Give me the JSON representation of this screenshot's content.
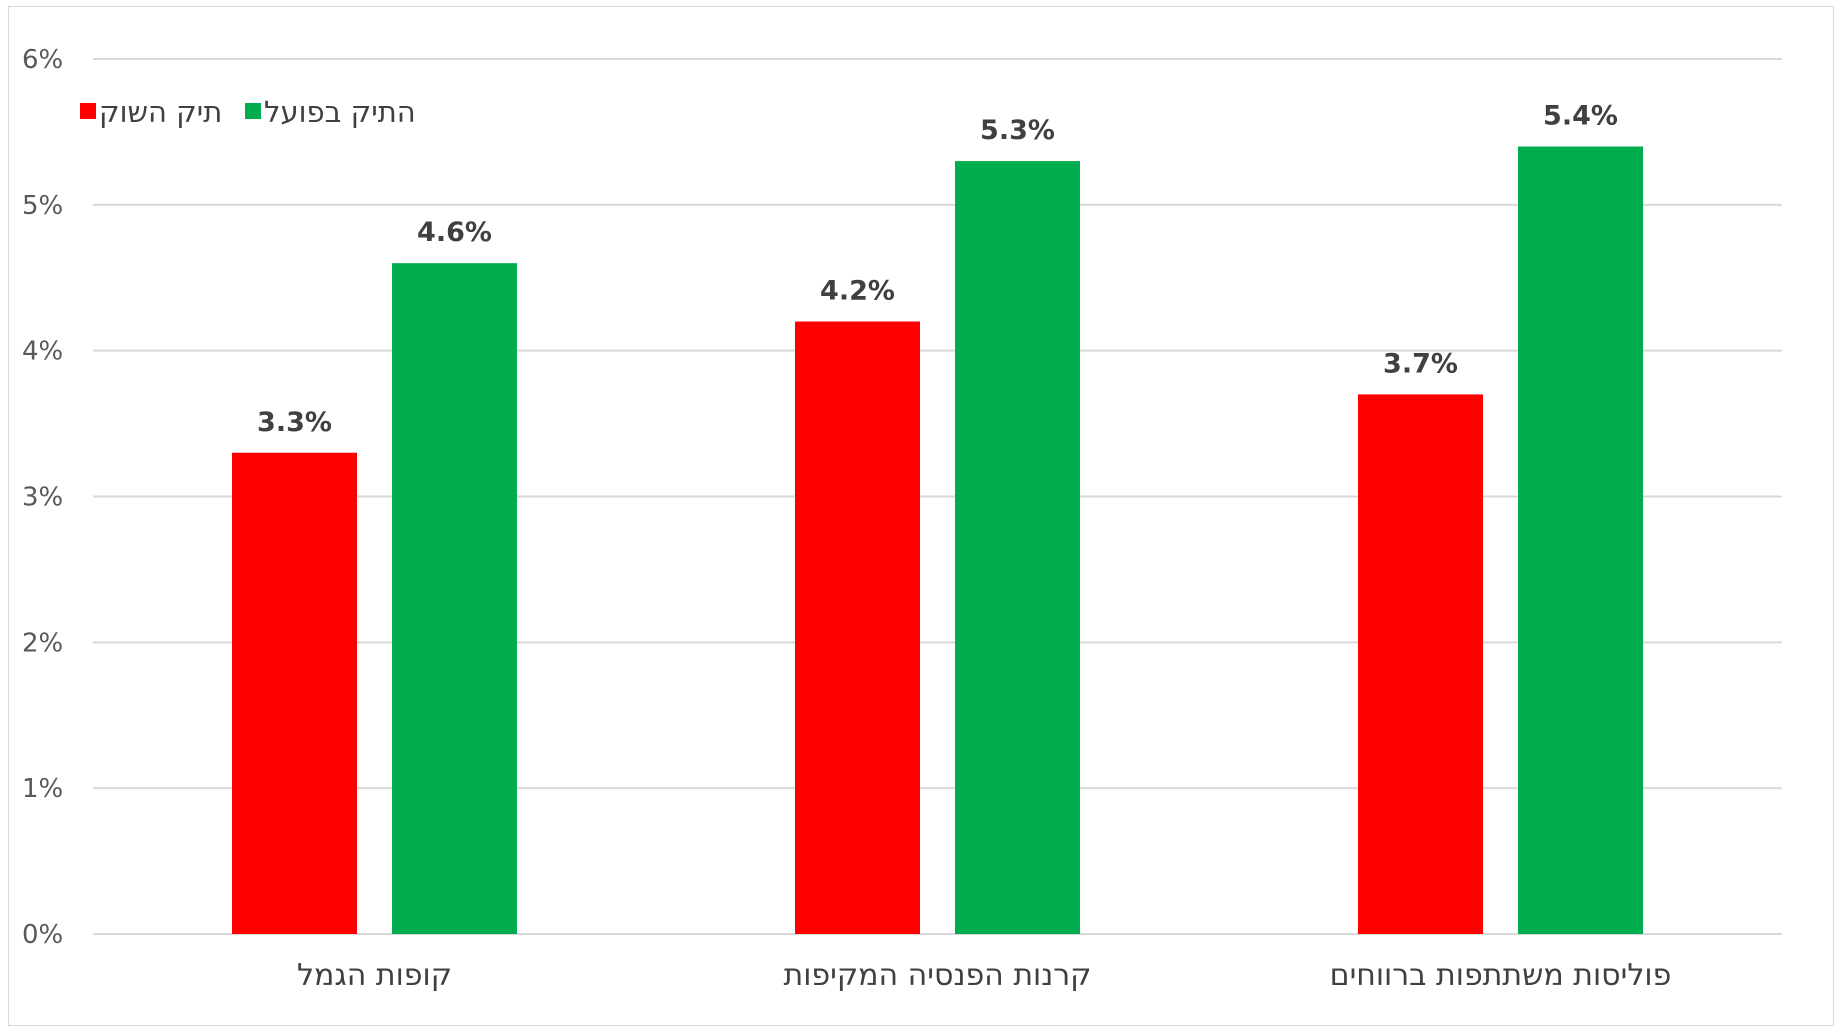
{
  "chart_data": {
    "type": "bar",
    "categories": [
      "קופות הגמל",
      "קרנות הפנסיה המקיפות",
      "פוליסות משתתפות ברווחים"
    ],
    "series": [
      {
        "name": "תיק השוק",
        "color": "#ff0000",
        "values": [
          3.3,
          4.2,
          3.7
        ],
        "labels": [
          "3.3%",
          "4.2%",
          "3.7%"
        ]
      },
      {
        "name": "התיק בפועל",
        "color": "#00ad4e",
        "values": [
          4.6,
          5.3,
          5.4
        ],
        "labels": [
          "4.6%",
          "5.3%",
          "5.4%"
        ]
      }
    ],
    "ylim": [
      0,
      6
    ],
    "yticks": [
      0,
      1,
      2,
      3,
      4,
      5,
      6
    ],
    "ytick_labels": [
      "0%",
      "1%",
      "2%",
      "3%",
      "4%",
      "5%",
      "6%"
    ],
    "grid": true,
    "legend_position": "top-left",
    "title": "",
    "xlabel": "",
    "ylabel": ""
  }
}
